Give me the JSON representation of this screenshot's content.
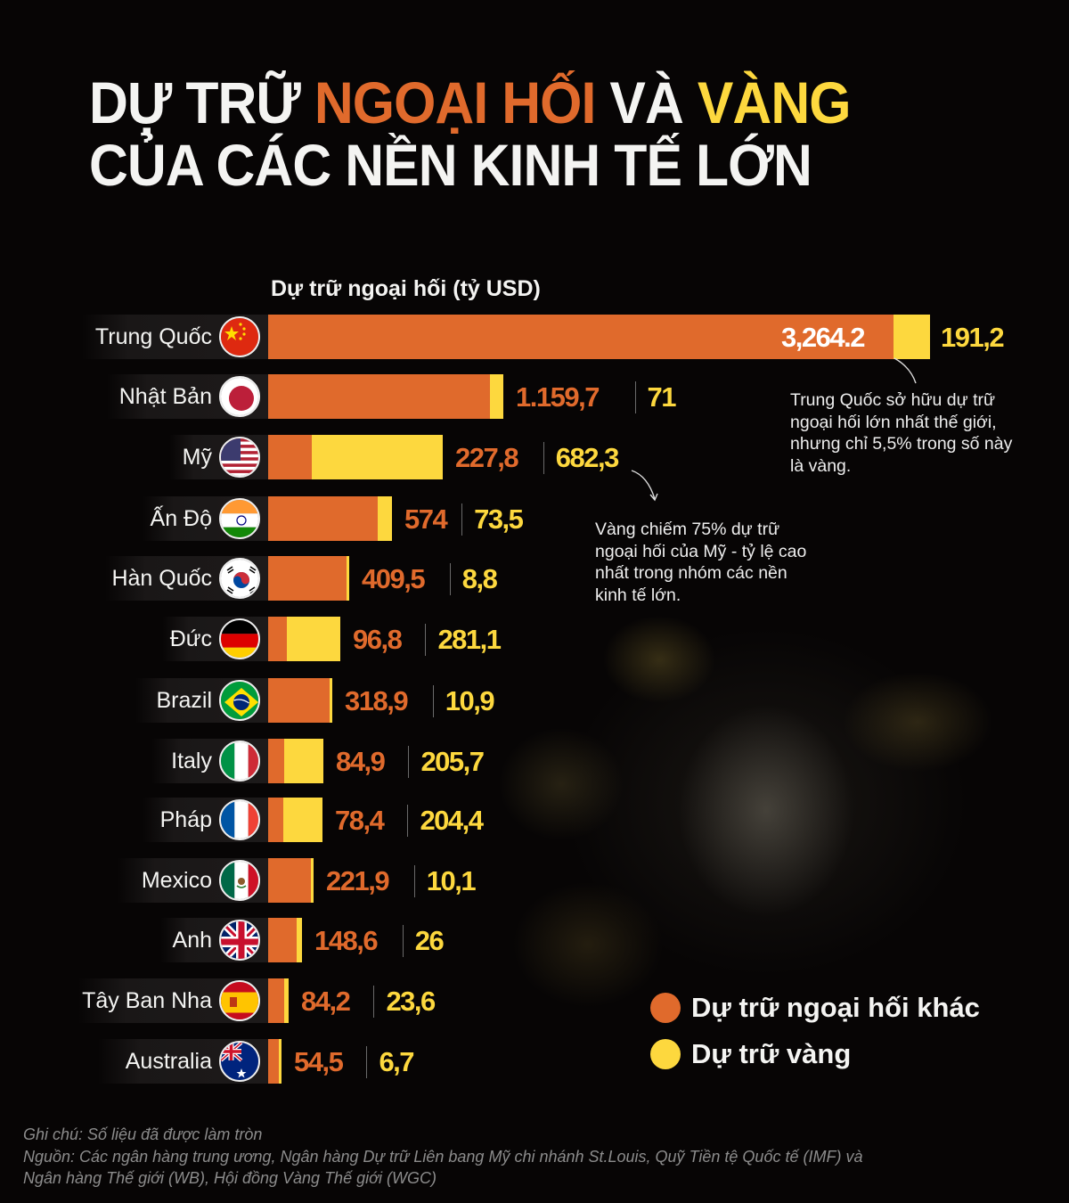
{
  "title": {
    "line1_part1": "DỰ TRỮ ",
    "line1_part2": "NGOẠI HỐI",
    "line1_part3": " VÀ ",
    "line1_part4": "VÀNG",
    "line2": "CỦA CÁC NỀN KINH TẾ LỚN"
  },
  "colors": {
    "fx": "#e06a2c",
    "gold": "#fdd83e",
    "background": "#070505",
    "text": "#f4f4f2"
  },
  "chart_data": {
    "type": "bar",
    "orientation": "horizontal-stacked",
    "title": "Dự trữ ngoại hối và vàng của các nền kinh tế lớn",
    "subtitle": "Dự trữ ngoại hối (tỷ USD)",
    "xlabel": "",
    "ylabel": "",
    "categories": [
      "Trung Quốc",
      "Nhật Bản",
      "Mỹ",
      "Ấn Độ",
      "Hàn Quốc",
      "Đức",
      "Brazil",
      "Italy",
      "Pháp",
      "Mexico",
      "Anh",
      "Tây Ban Nha",
      "Australia"
    ],
    "series": [
      {
        "name": "Dự trữ ngoại hối khác",
        "color": "#e06a2c",
        "values": [
          3264.2,
          1159.7,
          227.8,
          574,
          409.5,
          96.8,
          318.9,
          84.9,
          78.4,
          221.9,
          148.6,
          84.2,
          54.5
        ],
        "labels": [
          "3,264.2",
          "1.159,7",
          "227,8",
          "574",
          "409,5",
          "96,8",
          "318,9",
          "84,9",
          "78,4",
          "221,9",
          "148,6",
          "84,2",
          "54,5"
        ]
      },
      {
        "name": "Dự trữ vàng",
        "color": "#fdd83e",
        "values": [
          191.2,
          71,
          682.3,
          73.5,
          8.8,
          281.1,
          10.9,
          205.7,
          204.4,
          10.1,
          26,
          23.6,
          6.7
        ],
        "labels": [
          "191,2",
          "71",
          "682,3",
          "73,5",
          "8,8",
          "281,1",
          "10,9",
          "205,7",
          "204,4",
          "10,1",
          "26",
          "23,6",
          "6,7"
        ]
      }
    ],
    "legend": {
      "position": "bottom-right",
      "entries": [
        "Dự trữ ngoại hối khác",
        "Dự trữ vàng"
      ]
    },
    "grid": false,
    "annotations": [
      "Trung Quốc sở hữu dự trữ ngoại hối lớn nhất thế giới, nhưng chỉ 5,5% trong số này là vàng.",
      "Vàng chiếm 75% dự trữ ngoại hối của Mỹ - tỷ lệ cao nhất trong nhóm các nền kinh tế lớn."
    ]
  },
  "rows": [
    {
      "country": "Trung Quốc",
      "flag": "china",
      "fx": 3264.2,
      "gold": 191.2,
      "fx_label": "3,264.2",
      "gold_label": "191,2",
      "inside": true
    },
    {
      "country": "Nhật Bản",
      "flag": "japan",
      "fx": 1159.7,
      "gold": 71,
      "fx_label": "1.159,7",
      "gold_label": "71"
    },
    {
      "country": "Mỹ",
      "flag": "usa",
      "fx": 227.8,
      "gold": 682.3,
      "fx_label": "227,8",
      "gold_label": "682,3"
    },
    {
      "country": "Ấn Độ",
      "flag": "india",
      "fx": 574,
      "gold": 73.5,
      "fx_label": "574",
      "gold_label": "73,5"
    },
    {
      "country": "Hàn Quốc",
      "flag": "korea",
      "fx": 409.5,
      "gold": 8.8,
      "fx_label": "409,5",
      "gold_label": "8,8"
    },
    {
      "country": "Đức",
      "flag": "germany",
      "fx": 96.8,
      "gold": 281.1,
      "fx_label": "96,8",
      "gold_label": "281,1"
    },
    {
      "country": "Brazil",
      "flag": "brazil",
      "fx": 318.9,
      "gold": 10.9,
      "fx_label": "318,9",
      "gold_label": "10,9"
    },
    {
      "country": "Italy",
      "flag": "italy",
      "fx": 84.9,
      "gold": 205.7,
      "fx_label": "84,9",
      "gold_label": "205,7"
    },
    {
      "country": "Pháp",
      "flag": "france",
      "fx": 78.4,
      "gold": 204.4,
      "fx_label": "78,4",
      "gold_label": "204,4"
    },
    {
      "country": "Mexico",
      "flag": "mexico",
      "fx": 221.9,
      "gold": 10.1,
      "fx_label": "221,9",
      "gold_label": "10,1"
    },
    {
      "country": "Anh",
      "flag": "uk",
      "fx": 148.6,
      "gold": 26,
      "fx_label": "148,6",
      "gold_label": "26"
    },
    {
      "country": "Tây Ban Nha",
      "flag": "spain",
      "fx": 84.2,
      "gold": 23.6,
      "fx_label": "84,2",
      "gold_label": "23,6"
    },
    {
      "country": "Australia",
      "flag": "australia",
      "fx": 54.5,
      "gold": 6.7,
      "fx_label": "54,5",
      "gold_label": "6,7"
    }
  ],
  "annotations": {
    "china": [
      "Trung Quốc sở hữu dự trữ",
      "ngoại hối lớn nhất thế giới,",
      "nhưng chỉ 5,5% trong số này",
      "là vàng."
    ],
    "usa": [
      "Vàng chiếm 75% dự trữ",
      "ngoại hối của Mỹ - tỷ lệ cao",
      "nhất trong nhóm các nền",
      "kinh tế lớn."
    ]
  },
  "legend": {
    "fx_label": "Dự trữ ngoại hối khác",
    "gold_label": "Dự trữ vàng"
  },
  "footer": {
    "note": "Ghi chú: Số liệu đã được làm tròn",
    "source_line1": "Nguồn: Các ngân hàng trung ương, Ngân hàng Dự trữ Liên bang Mỹ chi nhánh St.Louis, Quỹ Tiền tệ Quốc tế (IMF) và",
    "source_line2": "Ngân hàng Thế giới (WB), Hội đồng Vàng Thế giới (WGC)"
  }
}
